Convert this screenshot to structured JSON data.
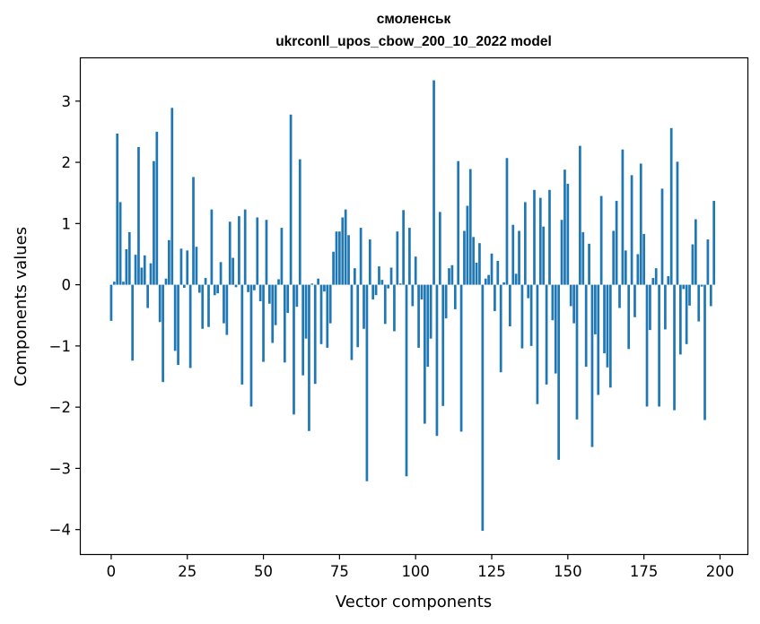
{
  "chart_data": {
    "type": "bar",
    "title": "смоленськ",
    "subtitle": "ukrconll_upos_cbow_200_10_2022 model",
    "xlabel": "Vector components",
    "ylabel": "Components values",
    "xlim": [
      -10,
      209
    ],
    "ylim": [
      -4.4,
      3.7
    ],
    "xticks": [
      0,
      25,
      50,
      75,
      100,
      125,
      150,
      175,
      200
    ],
    "yticks": [
      -4,
      -3,
      -2,
      -1,
      0,
      1,
      2,
      3
    ],
    "ytick_labels": [
      "−4",
      "−3",
      "−2",
      "−1",
      "0",
      "1",
      "2",
      "3"
    ],
    "bar_color": "#1f77b4",
    "grid": false,
    "values": [
      -0.59,
      0.05,
      2.47,
      1.35,
      0.05,
      0.58,
      0.86,
      -1.24,
      0.49,
      2.25,
      0.28,
      0.48,
      -0.38,
      0.35,
      2.02,
      2.5,
      -0.61,
      -1.59,
      0.1,
      0.73,
      2.89,
      -1.08,
      -1.31,
      0.59,
      -0.05,
      0.56,
      -1.36,
      1.76,
      0.62,
      -0.13,
      -0.72,
      0.11,
      -0.69,
      1.23,
      -0.17,
      -0.14,
      0.37,
      -0.63,
      -0.82,
      1.03,
      0.44,
      -0.04,
      1.12,
      -1.63,
      1.23,
      -0.12,
      -1.99,
      -0.09,
      1.1,
      -0.27,
      -1.26,
      1.06,
      -0.31,
      -0.95,
      -0.66,
      0.09,
      0.93,
      -1.27,
      -0.46,
      2.78,
      -2.12,
      -0.36,
      2.05,
      -1.48,
      -0.88,
      -2.39,
      0.02,
      -1.62,
      0.1,
      -0.97,
      -0.11,
      -1.03,
      -0.63,
      0.54,
      0.87,
      0.87,
      1.1,
      1.23,
      0.81,
      -1.23,
      0.27,
      -1.02,
      0.93,
      -0.72,
      -3.21,
      0.74,
      -0.24,
      -0.17,
      0.3,
      0.08,
      -0.64,
      -0.06,
      0.28,
      -0.76,
      0.87,
      0.02,
      1.22,
      -3.13,
      0.93,
      -0.35,
      0.46,
      -1.03,
      -0.24,
      -2.27,
      -1.34,
      -0.88,
      3.34,
      -2.47,
      1.19,
      -1.98,
      -0.55,
      0.27,
      0.32,
      -0.4,
      2.02,
      -2.4,
      0.88,
      1.29,
      1.89,
      0.78,
      0.36,
      0.68,
      -4.02,
      0.1,
      0.16,
      0.51,
      -0.43,
      0.39,
      -1.43,
      0.04,
      2.07,
      -0.68,
      0.98,
      0.18,
      0.88,
      -1.04,
      1.35,
      -0.22,
      -1.0,
      1.55,
      -1.95,
      1.42,
      0.95,
      -1.63,
      1.55,
      -0.58,
      -1.45,
      -2.86,
      1.06,
      1.88,
      1.65,
      -0.35,
      -0.63,
      -2.2,
      2.27,
      0.86,
      -1.34,
      0.67,
      -2.65,
      -0.81,
      -1.8,
      1.45,
      -1.12,
      -1.35,
      -1.68,
      0.88,
      1.37,
      -0.38,
      2.21,
      0.56,
      -1.05,
      1.79,
      -0.53,
      0.5,
      1.98,
      0.83,
      -1.99,
      -0.74,
      0.11,
      0.27,
      -1.99,
      1.57,
      -0.73,
      0.14,
      2.56,
      -2.05,
      2.01,
      -1.14,
      -0.07,
      -0.97,
      -0.34,
      0.66,
      1.07,
      -0.6,
      -0.03,
      -2.21,
      0.74,
      -0.35,
      1.37
    ]
  }
}
